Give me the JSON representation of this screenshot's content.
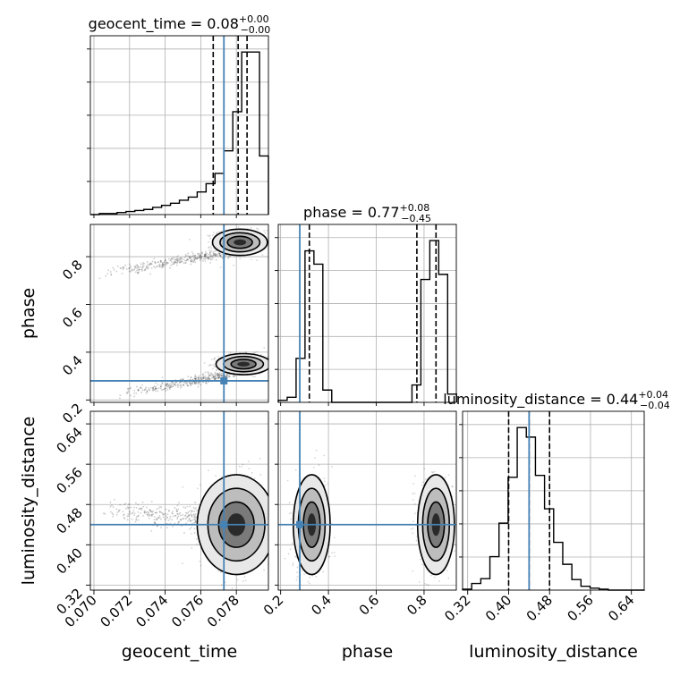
{
  "chart_data": {
    "type": "corner",
    "truth_color": "#4682b4",
    "contour_color": "#000000",
    "parameters": [
      {
        "name": "geocent_time",
        "axis_label": "geocent_time",
        "range": [
          0.0698,
          0.0798
        ],
        "ticks": [
          "0.070",
          "0.072",
          "0.074",
          "0.076",
          "0.078"
        ],
        "tick_values": [
          0.07,
          0.072,
          0.074,
          0.076,
          0.078
        ],
        "title_main": "geocent_time = 0.08",
        "title_sup": "+0.00",
        "title_sub": "−0.00",
        "truth": 0.0773,
        "quantiles": [
          0.0767,
          0.0781,
          0.0786
        ],
        "hist_edges_start": 0.0698,
        "hist_bin_width": 0.0005,
        "hist_counts": [
          0,
          1,
          1,
          2,
          3,
          4,
          5,
          7,
          9,
          11,
          14,
          17,
          22,
          30,
          40,
          62,
          100,
          158,
          158,
          57
        ]
      },
      {
        "name": "phase",
        "axis_label": "phase",
        "range": [
          0.19,
          0.935
        ],
        "ticks": [
          "0.2",
          "0.4",
          "0.6",
          "0.8"
        ],
        "tick_values": [
          0.2,
          0.4,
          0.6,
          0.8
        ],
        "title_main": "phase = 0.77",
        "title_sup": "+0.08",
        "title_sub": "−0.45",
        "truth": 0.28,
        "quantiles": [
          0.32,
          0.77,
          0.85
        ],
        "hist_edges_start": 0.19,
        "hist_bin_width": 0.0373,
        "hist_counts": [
          2,
          5,
          43,
          148,
          135,
          12,
          0,
          0,
          0,
          0,
          0,
          0,
          0,
          0,
          0,
          17,
          120,
          158,
          125,
          8
        ]
      },
      {
        "name": "luminosity_distance",
        "axis_label": "luminosity_distance",
        "range": [
          0.31,
          0.665
        ],
        "ticks": [
          "0.32",
          "0.40",
          "0.48",
          "0.56",
          "0.64"
        ],
        "tick_values": [
          0.32,
          0.4,
          0.48,
          0.56,
          0.64
        ],
        "title_main": "luminosity_distance = 0.44",
        "title_sup": "+0.04",
        "title_sub": "−0.04",
        "truth": 0.44,
        "quantiles": [
          0.4,
          0.44,
          0.48
        ],
        "hist_edges_start": 0.31,
        "hist_bin_width": 0.0178,
        "hist_counts": [
          1,
          7,
          12,
          35,
          70,
          118,
          170,
          160,
          120,
          85,
          50,
          27,
          11,
          4,
          2,
          1,
          0,
          0,
          0,
          0
        ]
      }
    ],
    "scatter_panels": [
      {
        "x_param": "geocent_time",
        "y_param": "phase",
        "modes": [
          {
            "x": 0.0782,
            "y": 0.86,
            "sx": 0.0007,
            "sy": 0.025
          },
          {
            "x": 0.0784,
            "y": 0.35,
            "sx": 0.0007,
            "sy": 0.02
          }
        ],
        "tails": [
          {
            "x0": 0.07,
            "y0": 0.72,
            "x1": 0.0776,
            "y1": 0.82
          },
          {
            "x0": 0.0712,
            "y0": 0.22,
            "x1": 0.0776,
            "y1": 0.31
          }
        ]
      },
      {
        "x_param": "geocent_time",
        "y_param": "luminosity_distance",
        "modes": [
          {
            "x": 0.078,
            "y": 0.44,
            "sx": 0.001,
            "sy": 0.045
          }
        ],
        "tails": [
          {
            "x0": 0.07,
            "y0": 0.47,
            "x1": 0.0775,
            "y1": 0.45
          }
        ]
      },
      {
        "x_param": "phase",
        "y_param": "luminosity_distance",
        "modes": [
          {
            "x": 0.33,
            "y": 0.44,
            "sx": 0.035,
            "sy": 0.045
          },
          {
            "x": 0.85,
            "y": 0.44,
            "sx": 0.035,
            "sy": 0.045
          }
        ],
        "tails": []
      }
    ]
  }
}
